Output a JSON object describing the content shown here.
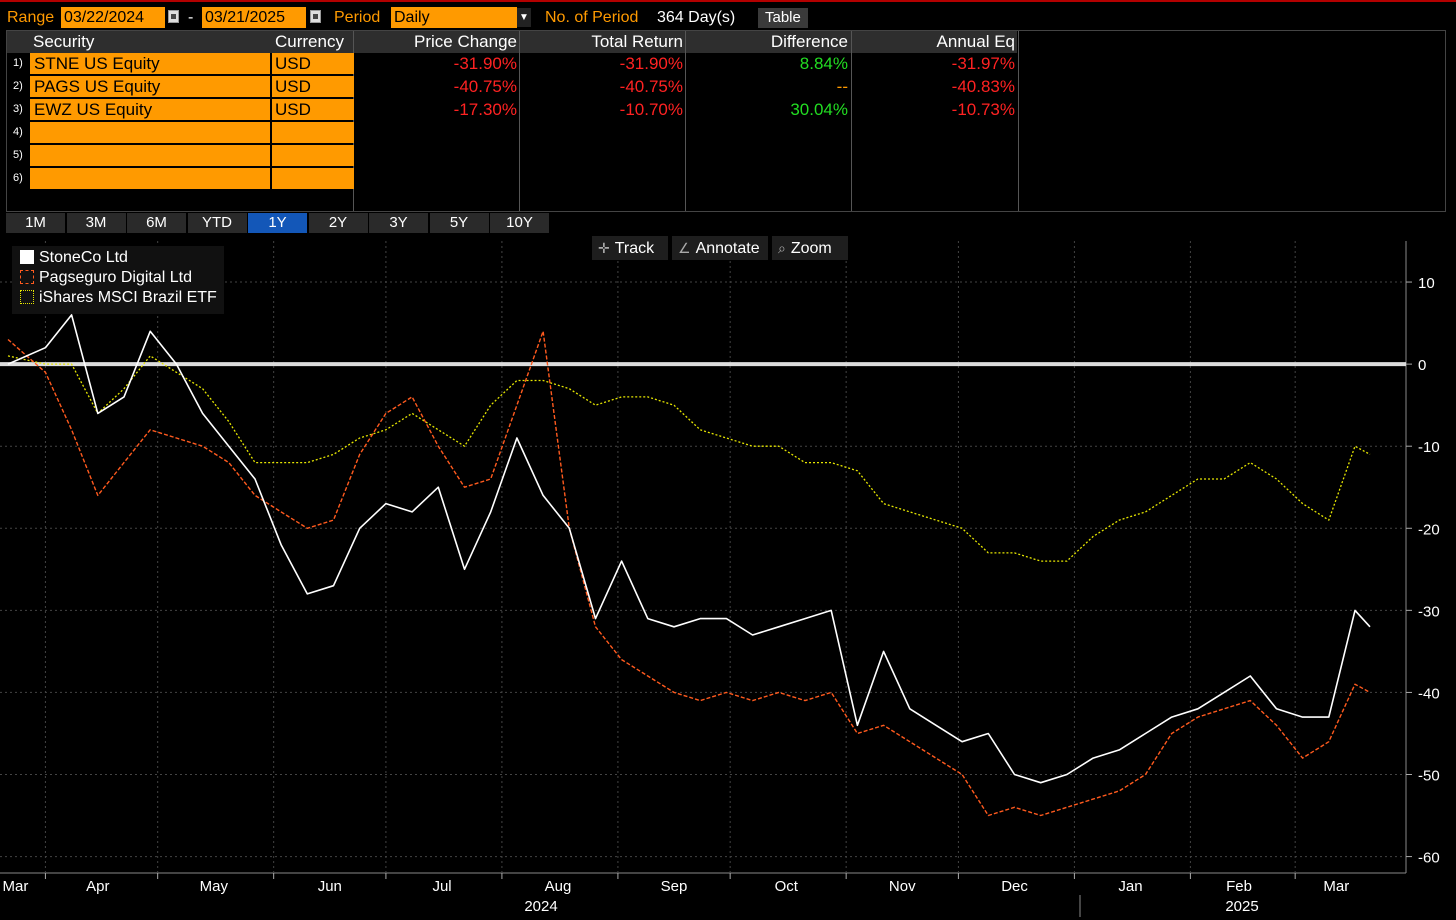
{
  "toolbar": {
    "range_label": "Range",
    "range_start": "03/22/2024",
    "range_sep": "-",
    "range_end": "03/21/2025",
    "period_label": "Period",
    "period_value": "Daily",
    "num_period_label": "No. of Period",
    "num_period_value": "364 Day(s)",
    "table_button": "Table"
  },
  "table": {
    "headers": [
      "Security",
      "Currency",
      "Price Change",
      "Total Return",
      "Difference",
      "Annual Eq"
    ],
    "rows": [
      {
        "num": "1)",
        "security": "STNE US Equity",
        "currency": "USD",
        "price_change": "-31.90%",
        "total_return": "-31.90%",
        "difference": "8.84%",
        "annual_eq": "-31.97%"
      },
      {
        "num": "2)",
        "security": "PAGS US Equity",
        "currency": "USD",
        "price_change": "-40.75%",
        "total_return": "-40.75%",
        "difference": "--",
        "annual_eq": "-40.83%"
      },
      {
        "num": "3)",
        "security": "EWZ US Equity",
        "currency": "USD",
        "price_change": "-17.30%",
        "total_return": "-10.70%",
        "difference": "30.04%",
        "annual_eq": "-10.73%"
      },
      {
        "num": "4)",
        "security": "",
        "currency": "",
        "price_change": "",
        "total_return": "",
        "difference": "",
        "annual_eq": ""
      },
      {
        "num": "5)",
        "security": "",
        "currency": "",
        "price_change": "",
        "total_return": "",
        "difference": "",
        "annual_eq": ""
      },
      {
        "num": "6)",
        "security": "",
        "currency": "",
        "price_change": "",
        "total_return": "",
        "difference": "",
        "annual_eq": ""
      }
    ]
  },
  "periods": {
    "items": [
      "1M",
      "3M",
      "6M",
      "YTD",
      "1Y",
      "2Y",
      "3Y",
      "5Y",
      "10Y"
    ],
    "active": "1Y"
  },
  "chart_tools": {
    "track": "Track",
    "annotate": "Annotate",
    "zoom": "Zoom"
  },
  "colors": {
    "accent_orange": "#ff9a00",
    "negative": "#ff2222",
    "positive": "#22dd22",
    "active_period": "#1357b8",
    "stne_line": "#ffffff",
    "pags_line": "#ff5a1e",
    "ewz_line": "#e6e600"
  },
  "chart_data": {
    "type": "line",
    "legend": [
      "StoneCo Ltd",
      "Pagseguro Digital Ltd",
      "iShares MSCI Brazil ETF"
    ],
    "legend_position": "top-left",
    "x_tick_labels": [
      "Mar",
      "Apr",
      "May",
      "Jun",
      "Jul",
      "Aug",
      "Sep",
      "Oct",
      "Nov",
      "Dec",
      "Jan",
      "Feb",
      "Mar"
    ],
    "year_labels": [
      "2024",
      "2025"
    ],
    "y_ticks": [
      10,
      0,
      -10,
      -20,
      -30,
      -40,
      -50,
      -60
    ],
    "ylim": [
      -62,
      15
    ],
    "grid": true,
    "x": [
      "2024-03-22",
      "2024-04-01",
      "2024-04-08",
      "2024-04-15",
      "2024-04-22",
      "2024-04-29",
      "2024-05-06",
      "2024-05-13",
      "2024-05-20",
      "2024-05-27",
      "2024-06-03",
      "2024-06-10",
      "2024-06-17",
      "2024-06-24",
      "2024-07-01",
      "2024-07-08",
      "2024-07-15",
      "2024-07-22",
      "2024-07-29",
      "2024-08-05",
      "2024-08-12",
      "2024-08-19",
      "2024-08-26",
      "2024-09-02",
      "2024-09-09",
      "2024-09-16",
      "2024-09-23",
      "2024-09-30",
      "2024-10-07",
      "2024-10-14",
      "2024-10-21",
      "2024-10-28",
      "2024-11-04",
      "2024-11-11",
      "2024-11-18",
      "2024-11-25",
      "2024-12-02",
      "2024-12-09",
      "2024-12-16",
      "2024-12-23",
      "2024-12-30",
      "2025-01-06",
      "2025-01-13",
      "2025-01-20",
      "2025-01-27",
      "2025-02-03",
      "2025-02-10",
      "2025-02-17",
      "2025-02-24",
      "2025-03-03",
      "2025-03-10",
      "2025-03-17",
      "2025-03-21"
    ],
    "series": [
      {
        "name": "StoneCo Ltd",
        "values": [
          0,
          2,
          6,
          -6,
          -4,
          4,
          0,
          -6,
          -10,
          -14,
          -22,
          -28,
          -27,
          -20,
          -17,
          -18,
          -15,
          -25,
          -18,
          -9,
          -16,
          -20,
          -31,
          -24,
          -31,
          -32,
          -31,
          -31,
          -33,
          -32,
          -31,
          -30,
          -44,
          -35,
          -42,
          -44,
          -46,
          -45,
          -50,
          -51,
          -50,
          -48,
          -47,
          -45,
          -43,
          -42,
          -40,
          -38,
          -42,
          -43,
          -43,
          -30,
          -32
        ]
      },
      {
        "name": "Pagseguro Digital Ltd",
        "values": [
          3,
          -1,
          -8,
          -16,
          -12,
          -8,
          -9,
          -10,
          -12,
          -16,
          -18,
          -20,
          -19,
          -11,
          -6,
          -4,
          -10,
          -15,
          -14,
          -5,
          4,
          -20,
          -32,
          -36,
          -38,
          -40,
          -41,
          -40,
          -41,
          -40,
          -41,
          -40,
          -45,
          -44,
          -46,
          -48,
          -50,
          -55,
          -54,
          -55,
          -54,
          -53,
          -52,
          -50,
          -45,
          -43,
          -42,
          -41,
          -44,
          -48,
          -46,
          -39,
          -40
        ]
      },
      {
        "name": "iShares MSCI Brazil ETF",
        "values": [
          1,
          0,
          0,
          -6,
          -3,
          1,
          -1,
          -3,
          -7,
          -12,
          -12,
          -12,
          -11,
          -9,
          -8,
          -6,
          -8,
          -10,
          -5,
          -2,
          -2,
          -3,
          -5,
          -4,
          -4,
          -5,
          -8,
          -9,
          -10,
          -10,
          -12,
          -12,
          -13,
          -17,
          -18,
          -19,
          -20,
          -23,
          -23,
          -24,
          -24,
          -21,
          -19,
          -18,
          -16,
          -14,
          -14,
          -12,
          -14,
          -17,
          -19,
          -10,
          -11
        ]
      }
    ]
  }
}
